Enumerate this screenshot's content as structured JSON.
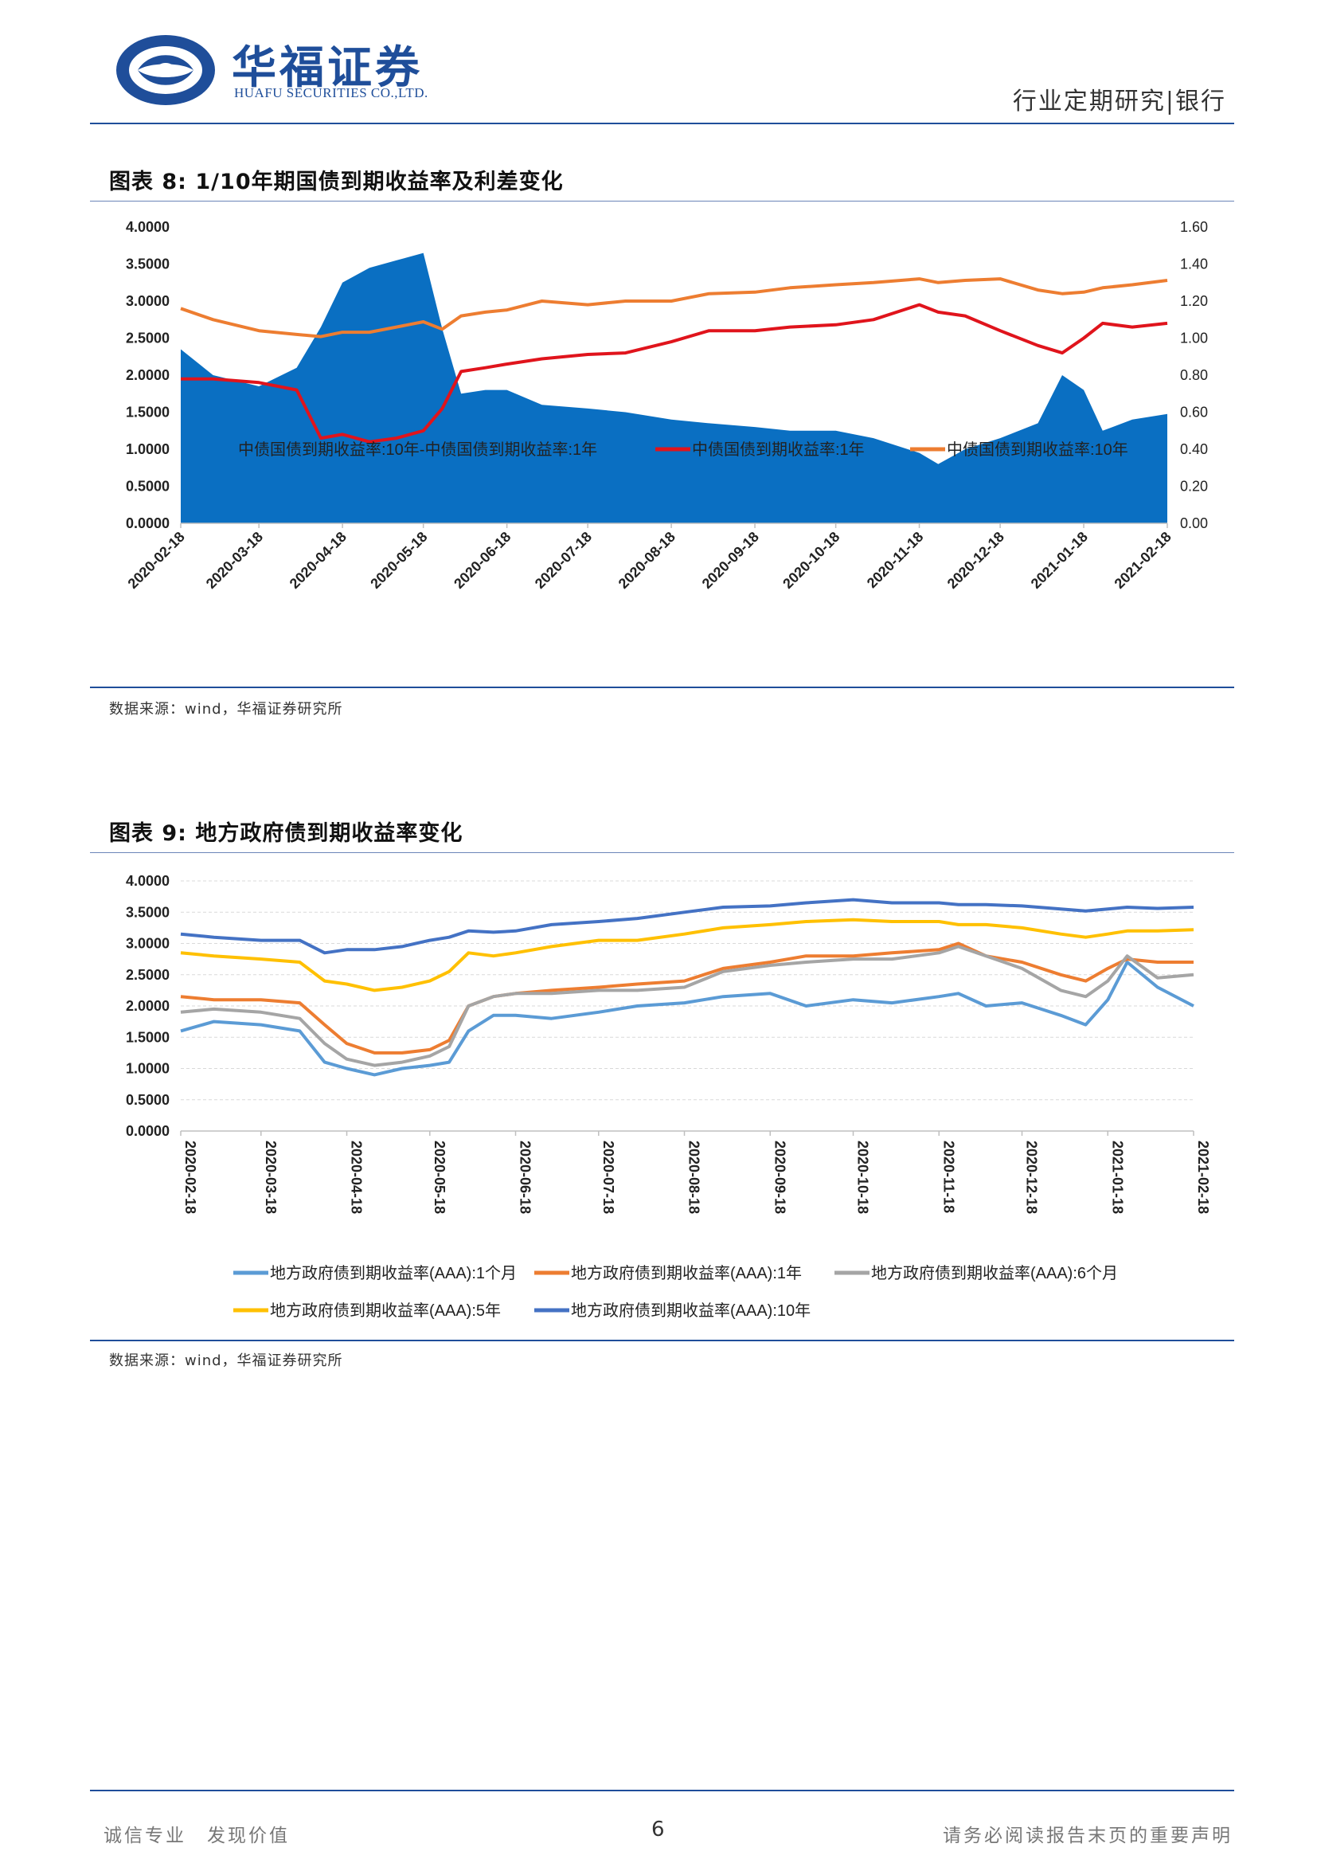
{
  "header": {
    "logo_cn": "华福证券",
    "logo_en": "HUAFU SECURITIES CO.,LTD.",
    "report_type": "行业定期研究|银行"
  },
  "figure8": {
    "title": "图表 8: 1/10年期国债到期收益率及利差变化",
    "source": "数据来源：wind，华福证券研究所"
  },
  "figure9": {
    "title": "图表 9: 地方政府债到期收益率变化",
    "source": "数据来源：wind，华福证券研究所"
  },
  "footer": {
    "left": "诚信专业　发现价值",
    "page": "6",
    "right": "请务必阅读报告末页的重要声明"
  },
  "chart_data": [
    {
      "type": "line",
      "id": "fig8",
      "x": [
        "2020-02-18",
        "2020-03-01",
        "2020-03-18",
        "2020-04-01",
        "2020-04-10",
        "2020-04-18",
        "2020-04-28",
        "2020-05-08",
        "2020-05-18",
        "2020-05-25",
        "2020-06-01",
        "2020-06-10",
        "2020-06-18",
        "2020-07-01",
        "2020-07-18",
        "2020-08-01",
        "2020-08-18",
        "2020-09-01",
        "2020-09-18",
        "2020-10-01",
        "2020-10-18",
        "2020-11-01",
        "2020-11-18",
        "2020-11-25",
        "2020-12-05",
        "2020-12-18",
        "2021-01-01",
        "2021-01-10",
        "2021-01-18",
        "2021-01-25",
        "2021-02-05",
        "2021-02-18"
      ],
      "series": [
        {
          "name": "中债国债到期收益率:10年-中债国债到期收益率:1年",
          "render": "area",
          "axis": "right",
          "color": "#0a6fc2",
          "values": [
            0.94,
            0.8,
            0.74,
            0.84,
            1.06,
            1.3,
            1.38,
            1.42,
            1.46,
            1.05,
            0.7,
            0.72,
            0.72,
            0.64,
            0.62,
            0.6,
            0.56,
            0.54,
            0.52,
            0.5,
            0.5,
            0.46,
            0.38,
            0.32,
            0.4,
            0.46,
            0.54,
            0.8,
            0.72,
            0.5,
            0.56,
            0.59
          ]
        },
        {
          "name": "中债国债到期收益率:1年",
          "render": "line",
          "axis": "left",
          "color": "#e0141c",
          "values": [
            1.95,
            1.95,
            1.9,
            1.8,
            1.15,
            1.2,
            1.1,
            1.15,
            1.25,
            1.55,
            2.05,
            2.1,
            2.15,
            2.22,
            2.28,
            2.3,
            2.45,
            2.6,
            2.6,
            2.65,
            2.68,
            2.75,
            2.95,
            2.85,
            2.8,
            2.6,
            2.4,
            2.3,
            2.5,
            2.7,
            2.65,
            2.7
          ]
        },
        {
          "name": "中债国债到期收益率:10年",
          "render": "line",
          "axis": "left",
          "color": "#ed7d31",
          "values": [
            2.9,
            2.75,
            2.6,
            2.55,
            2.52,
            2.58,
            2.58,
            2.65,
            2.72,
            2.62,
            2.8,
            2.85,
            2.88,
            3.0,
            2.95,
            3.0,
            3.0,
            3.1,
            3.12,
            3.18,
            3.22,
            3.25,
            3.3,
            3.25,
            3.28,
            3.3,
            3.15,
            3.1,
            3.12,
            3.18,
            3.22,
            3.28
          ]
        }
      ],
      "left_axis": {
        "ylim": [
          0,
          4
        ],
        "ticks": [
          "0.0000",
          "0.5000",
          "1.0000",
          "1.5000",
          "2.0000",
          "2.5000",
          "3.0000",
          "3.5000",
          "4.0000"
        ]
      },
      "right_axis": {
        "ylim": [
          0,
          1.6
        ],
        "ticks": [
          "0.00",
          "0.20",
          "0.40",
          "0.60",
          "0.80",
          "1.00",
          "1.20",
          "1.40",
          "1.60"
        ]
      },
      "x_ticks": [
        "2020-02-18",
        "2020-03-18",
        "2020-04-18",
        "2020-05-18",
        "2020-06-18",
        "2020-07-18",
        "2020-08-18",
        "2020-09-18",
        "2020-10-18",
        "2020-11-18",
        "2020-12-18",
        "2021-01-18",
        "2021-02-18"
      ],
      "legend_position": "bottom"
    },
    {
      "type": "line",
      "id": "fig9",
      "x": [
        "2020-02-18",
        "2020-03-01",
        "2020-03-18",
        "2020-04-01",
        "2020-04-10",
        "2020-04-18",
        "2020-04-28",
        "2020-05-08",
        "2020-05-18",
        "2020-05-25",
        "2020-06-01",
        "2020-06-10",
        "2020-06-18",
        "2020-07-01",
        "2020-07-18",
        "2020-08-01",
        "2020-08-18",
        "2020-09-01",
        "2020-09-18",
        "2020-10-01",
        "2020-10-18",
        "2020-11-01",
        "2020-11-18",
        "2020-11-25",
        "2020-12-05",
        "2020-12-18",
        "2021-01-01",
        "2021-01-10",
        "2021-01-18",
        "2021-01-25",
        "2021-02-05",
        "2021-02-18"
      ],
      "series": [
        {
          "name": "地方政府债到期收益率(AAA):1个月",
          "color": "#5b9bd5",
          "values": [
            1.6,
            1.75,
            1.7,
            1.6,
            1.1,
            1.0,
            0.9,
            1.0,
            1.05,
            1.1,
            1.6,
            1.85,
            1.85,
            1.8,
            1.9,
            2.0,
            2.05,
            2.15,
            2.2,
            2.0,
            2.1,
            2.05,
            2.15,
            2.2,
            2.0,
            2.05,
            1.85,
            1.7,
            2.1,
            2.7,
            2.3,
            2.0
          ]
        },
        {
          "name": "地方政府债到期收益率(AAA):1年",
          "color": "#ed7d31",
          "values": [
            2.15,
            2.1,
            2.1,
            2.05,
            1.7,
            1.4,
            1.25,
            1.25,
            1.3,
            1.45,
            2.0,
            2.15,
            2.2,
            2.25,
            2.3,
            2.35,
            2.4,
            2.6,
            2.7,
            2.8,
            2.8,
            2.85,
            2.9,
            3.0,
            2.8,
            2.7,
            2.5,
            2.4,
            2.6,
            2.75,
            2.7,
            2.7
          ]
        },
        {
          "name": "地方政府债到期收益率(AAA):6个月",
          "color": "#a5a5a5",
          "values": [
            1.9,
            1.95,
            1.9,
            1.8,
            1.4,
            1.15,
            1.05,
            1.1,
            1.2,
            1.35,
            2.0,
            2.15,
            2.2,
            2.2,
            2.25,
            2.25,
            2.3,
            2.55,
            2.65,
            2.7,
            2.75,
            2.75,
            2.85,
            2.95,
            2.8,
            2.6,
            2.25,
            2.15,
            2.4,
            2.8,
            2.45,
            2.5
          ]
        },
        {
          "name": "地方政府债到期收益率(AAA):5年",
          "color": "#ffc000",
          "values": [
            2.85,
            2.8,
            2.75,
            2.7,
            2.4,
            2.35,
            2.25,
            2.3,
            2.4,
            2.55,
            2.85,
            2.8,
            2.85,
            2.95,
            3.05,
            3.05,
            3.15,
            3.25,
            3.3,
            3.35,
            3.38,
            3.35,
            3.35,
            3.3,
            3.3,
            3.25,
            3.15,
            3.1,
            3.15,
            3.2,
            3.2,
            3.22
          ]
        },
        {
          "name": "地方政府债到期收益率(AAA):10年",
          "color": "#4472c4",
          "values": [
            3.15,
            3.1,
            3.05,
            3.05,
            2.85,
            2.9,
            2.9,
            2.95,
            3.05,
            3.1,
            3.2,
            3.18,
            3.2,
            3.3,
            3.35,
            3.4,
            3.5,
            3.58,
            3.6,
            3.65,
            3.7,
            3.65,
            3.65,
            3.62,
            3.62,
            3.6,
            3.55,
            3.52,
            3.55,
            3.58,
            3.56,
            3.58
          ]
        }
      ],
      "left_axis": {
        "ylim": [
          0,
          4
        ],
        "ticks": [
          "0.0000",
          "0.5000",
          "1.0000",
          "1.5000",
          "2.0000",
          "2.5000",
          "3.0000",
          "3.5000",
          "4.0000"
        ]
      },
      "x_ticks": [
        "2020-02-18",
        "2020-03-18",
        "2020-04-18",
        "2020-05-18",
        "2020-06-18",
        "2020-07-18",
        "2020-08-18",
        "2020-09-18",
        "2020-10-18",
        "2020-11-18",
        "2020-12-18",
        "2021-01-18",
        "2021-02-18"
      ],
      "grid": true,
      "legend_position": "bottom"
    }
  ]
}
